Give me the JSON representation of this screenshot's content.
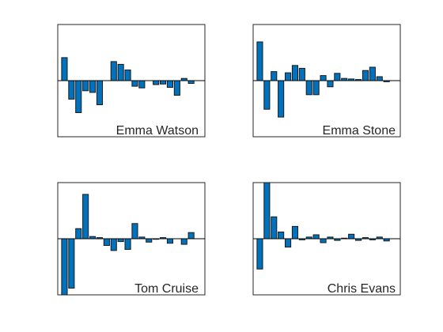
{
  "colors": {
    "bar_fill": "#0072BD",
    "bar_edge": "#1a1a1a",
    "axes": "#262626",
    "background": "#ffffff"
  },
  "chart_data": [
    {
      "type": "bar",
      "label": "Emma Watson",
      "categories": [
        1,
        2,
        3,
        4,
        5,
        6,
        7,
        8,
        9,
        10,
        11,
        12,
        13,
        14,
        15,
        16,
        17,
        18,
        19,
        20
      ],
      "values": [
        0.41,
        -0.33,
        -0.57,
        -0.18,
        -0.21,
        -0.43,
        0.0,
        0.34,
        0.29,
        0.19,
        -0.1,
        -0.13,
        0.0,
        -0.07,
        -0.06,
        -0.12,
        -0.26,
        0.04,
        -0.05,
        0.0
      ],
      "ylim": [
        -1,
        1
      ],
      "grid": false
    },
    {
      "type": "bar",
      "label": "Emma Stone",
      "categories": [
        1,
        2,
        3,
        4,
        5,
        6,
        7,
        8,
        9,
        10,
        11,
        12,
        13,
        14,
        15,
        16,
        17,
        18,
        19,
        20
      ],
      "values": [
        0.69,
        -0.51,
        0.16,
        -0.65,
        0.14,
        0.27,
        0.22,
        -0.25,
        -0.25,
        0.09,
        -0.11,
        0.13,
        0.04,
        0.03,
        0.02,
        0.18,
        0.24,
        0.07,
        -0.02,
        0.0
      ],
      "ylim": [
        -1,
        1
      ],
      "grid": false
    },
    {
      "type": "bar",
      "label": "Tom Cruise",
      "categories": [
        1,
        2,
        3,
        4,
        5,
        6,
        7,
        8,
        9,
        10,
        11,
        12,
        13,
        14,
        15,
        16,
        17,
        18,
        19,
        20
      ],
      "values": [
        -1.0,
        -0.88,
        0.18,
        0.79,
        0.04,
        0.02,
        -0.12,
        -0.21,
        -0.05,
        -0.19,
        0.27,
        0.03,
        -0.06,
        -0.01,
        0.02,
        -0.08,
        0.0,
        -0.1,
        0.11,
        0.0
      ],
      "ylim": [
        -1,
        1
      ],
      "grid": false
    },
    {
      "type": "bar",
      "label": "Chris Evans",
      "categories": [
        1,
        2,
        3,
        4,
        5,
        6,
        7,
        8,
        9,
        10,
        11,
        12,
        13,
        14,
        15,
        16,
        17,
        18,
        19,
        20
      ],
      "values": [
        -0.54,
        1.0,
        0.39,
        0.12,
        -0.15,
        0.22,
        -0.02,
        0.03,
        0.07,
        -0.07,
        0.03,
        -0.03,
        0.01,
        0.08,
        -0.03,
        0.02,
        -0.02,
        0.03,
        -0.04,
        0.0
      ],
      "ylim": [
        -1,
        1
      ],
      "grid": false
    }
  ]
}
